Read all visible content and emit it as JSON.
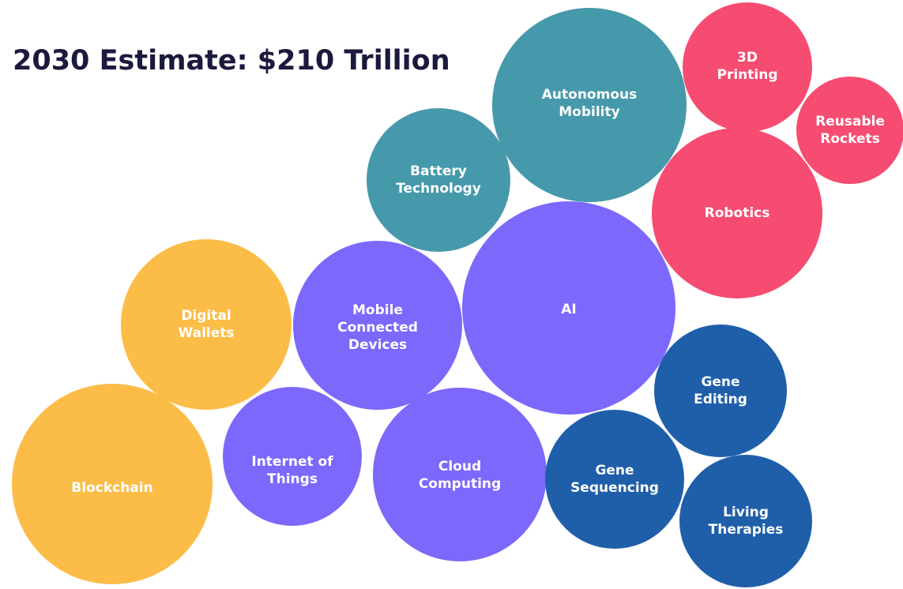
{
  "header": {
    "title": "2030 Estimate: $210 Trillion"
  },
  "nodes": [
    {
      "lines": [
        "Autonomous",
        "Mobility"
      ],
      "color": "#4699ab"
    },
    {
      "lines": [
        "3D",
        "Printing"
      ],
      "color": "#f64c72"
    },
    {
      "lines": [
        "Reusable",
        "Rockets"
      ],
      "color": "#f64c72"
    },
    {
      "lines": [
        "Battery",
        "Technology"
      ],
      "color": "#4699ab"
    },
    {
      "lines": [
        "Robotics"
      ],
      "color": "#f64c72"
    },
    {
      "lines": [
        "AI"
      ],
      "color": "#7c68fb"
    },
    {
      "lines": [
        "Mobile",
        "Connected",
        "Devices"
      ],
      "color": "#7c68fb"
    },
    {
      "lines": [
        "Digital",
        "Wallets"
      ],
      "color": "#fbbd48"
    },
    {
      "lines": [
        "Gene",
        "Editing"
      ],
      "color": "#1f5faa"
    },
    {
      "lines": [
        "Blockchain"
      ],
      "color": "#fbbd48"
    },
    {
      "lines": [
        "Internet of",
        "Things"
      ],
      "color": "#7c68fb"
    },
    {
      "lines": [
        "Cloud",
        "Computing"
      ],
      "color": "#7c68fb"
    },
    {
      "lines": [
        "Gene",
        "Sequencing"
      ],
      "color": "#1f5faa"
    },
    {
      "lines": [
        "Living",
        "Therapies"
      ],
      "color": "#1f5faa"
    }
  ]
}
